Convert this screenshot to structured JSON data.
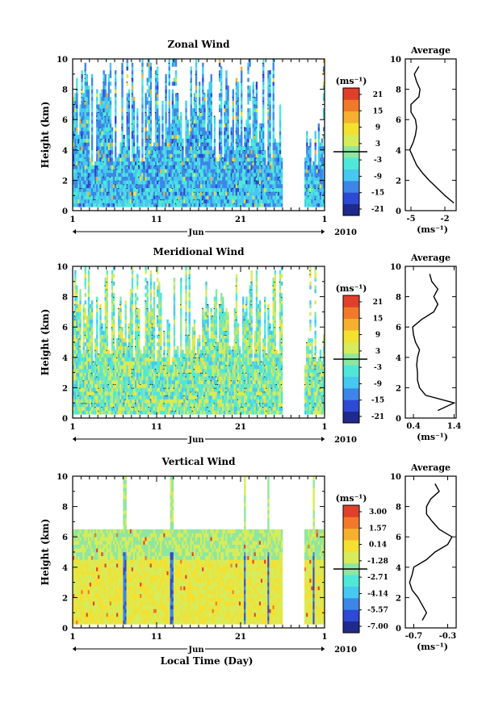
{
  "panels": [
    {
      "title": "Zonal Wind",
      "cbar_unit": "(ms⁻¹)",
      "cbar_ticks": [
        "21",
        "15",
        "9",
        "3",
        "-3",
        "-9",
        "-15",
        "-21"
      ],
      "avg_title": "Average",
      "avg_xticks": [
        "-5",
        "-2"
      ],
      "avg_xunit": "(ms⁻¹)"
    },
    {
      "title": "Meridional Wind",
      "cbar_unit": "(ms⁻¹)",
      "cbar_ticks": [
        "21",
        "15",
        "9",
        "3",
        "-3",
        "-9",
        "-15",
        "-21"
      ],
      "avg_title": "Average",
      "avg_xticks": [
        "0.4",
        "1.4"
      ],
      "avg_xunit": "(ms⁻¹)"
    },
    {
      "title": "Vertical Wind",
      "cbar_unit": "(ms⁻¹)",
      "cbar_ticks": [
        "3.00",
        "1.57",
        "0.14",
        "-1.28",
        "-2.71",
        "-4.14",
        "-5.57",
        "-7.00"
      ],
      "avg_title": "Average",
      "avg_xticks": [
        "-0.7",
        "-0.3"
      ],
      "avg_xunit": "(ms⁻¹)"
    }
  ],
  "shared": {
    "ylabel": "Height (km)",
    "yticks": [
      "0",
      "2",
      "4",
      "6",
      "8",
      "10"
    ],
    "xticks": [
      "1",
      "11",
      "21",
      "1"
    ],
    "month": "Jun",
    "year": "2010",
    "xlabel": "Local Time (Day)"
  },
  "colors": {
    "scale": [
      "#1f2a8c",
      "#2e49d4",
      "#3d86e8",
      "#46c8f0",
      "#4fe8d8",
      "#8ee6a0",
      "#d6ec5a",
      "#f4e030",
      "#f6b030",
      "#f07a2a",
      "#e0402a"
    ]
  },
  "chart_data": [
    {
      "type": "heatmap",
      "title": "Zonal Wind",
      "ylabel": "Height (km)",
      "xlabel": "Jun",
      "ylim": [
        0,
        10
      ],
      "xticks": [
        "1",
        "11",
        "21",
        "1"
      ],
      "colorbar": {
        "unit": "ms-1",
        "range": [
          -21,
          21
        ],
        "ticks": [
          21,
          15,
          9,
          3,
          -3,
          -9,
          -15,
          -21
        ]
      },
      "average_profile": {
        "title": "Average",
        "xlim": [
          -5.5,
          -1
        ],
        "height_km": [
          0.5,
          1,
          1.5,
          2,
          2.5,
          3,
          3.5,
          4,
          4.5,
          5,
          5.5,
          6,
          6.5,
          7,
          7.5,
          8,
          8.5,
          9,
          9.5
        ],
        "value": [
          -1.2,
          -2.0,
          -2.7,
          -3.4,
          -4.0,
          -4.5,
          -4.8,
          -5.1,
          -4.8,
          -4.6,
          -4.5,
          -4.6,
          -5.0,
          -5.0,
          -4.3,
          -4.2,
          -4.5,
          -4.7,
          -4.3
        ]
      }
    },
    {
      "type": "heatmap",
      "title": "Meridional Wind",
      "ylabel": "Height (km)",
      "xlabel": "Jun",
      "ylim": [
        0,
        10
      ],
      "xticks": [
        "1",
        "11",
        "21",
        "1"
      ],
      "colorbar": {
        "unit": "ms-1",
        "range": [
          -21,
          21
        ],
        "ticks": [
          21,
          15,
          9,
          3,
          -3,
          -9,
          -15,
          -21
        ]
      },
      "average_profile": {
        "title": "Average",
        "xlim": [
          0.2,
          1.45
        ],
        "height_km": [
          0.5,
          1,
          1.5,
          2,
          2.5,
          3,
          3.5,
          4,
          4.5,
          5,
          5.5,
          6,
          6.5,
          7,
          7.5,
          8,
          8.5,
          9,
          9.5
        ],
        "value": [
          1.0,
          1.4,
          0.7,
          0.55,
          0.5,
          0.5,
          0.48,
          0.5,
          0.55,
          0.45,
          0.4,
          0.38,
          0.6,
          0.9,
          1.0,
          0.9,
          1.0,
          0.85,
          0.8
        ]
      }
    },
    {
      "type": "heatmap",
      "title": "Vertical Wind",
      "ylabel": "Height (km)",
      "xlabel": "Jun",
      "ylim": [
        0,
        10
      ],
      "xticks": [
        "1",
        "11",
        "21",
        "1"
      ],
      "colorbar": {
        "unit": "ms-1",
        "range": [
          -7.0,
          3.0
        ],
        "ticks": [
          3.0,
          1.57,
          0.14,
          -1.28,
          -2.71,
          -4.14,
          -5.57,
          -7.0
        ]
      },
      "average_profile": {
        "title": "Average",
        "xlim": [
          -0.8,
          -0.2
        ],
        "height_km": [
          0.5,
          1,
          1.5,
          2,
          2.5,
          3,
          3.5,
          4,
          4.5,
          5,
          5.5,
          6,
          6.5,
          7,
          7.5,
          8,
          8.5,
          9,
          9.5
        ],
        "value": [
          -0.6,
          -0.55,
          -0.6,
          -0.65,
          -0.72,
          -0.75,
          -0.72,
          -0.7,
          -0.55,
          -0.45,
          -0.3,
          -0.25,
          -0.4,
          -0.48,
          -0.55,
          -0.55,
          -0.5,
          -0.4,
          -0.45
        ]
      }
    }
  ]
}
